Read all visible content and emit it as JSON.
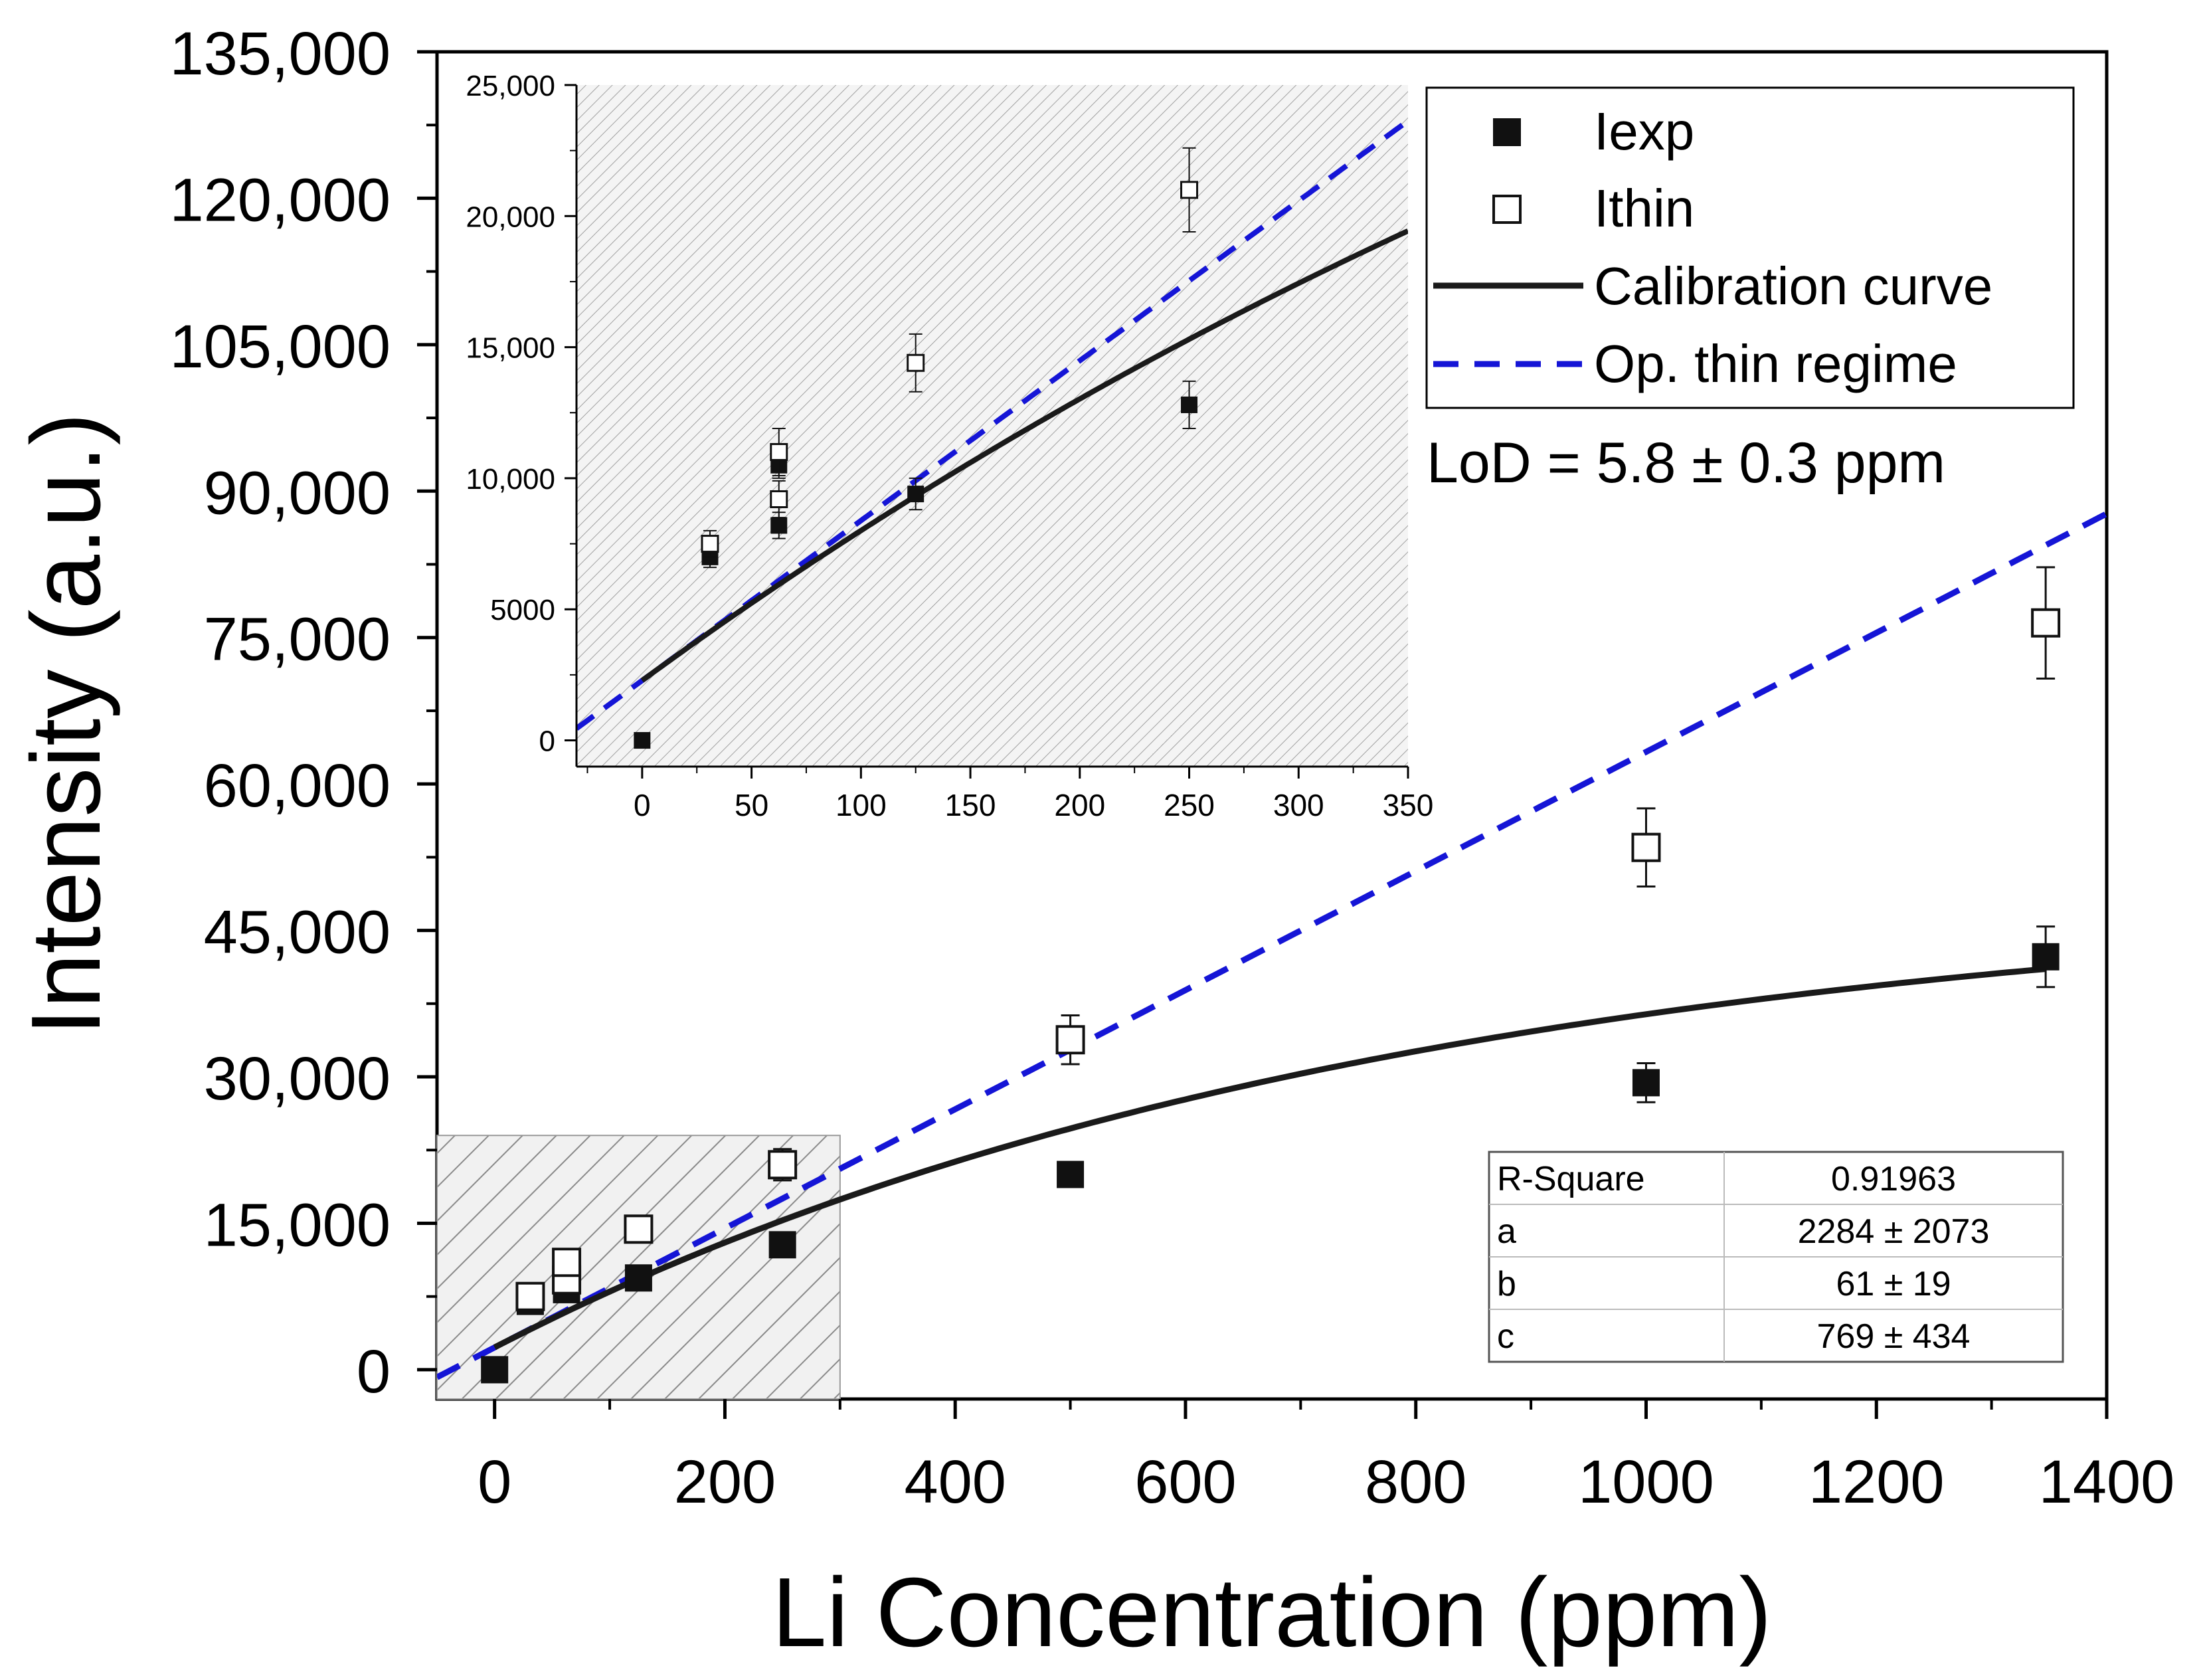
{
  "chart_data": {
    "type": "scatter",
    "title": "",
    "xlabel": "Li Concentration (ppm)",
    "ylabel": "Intensity (a.u.)",
    "xlim": [
      -50,
      1400
    ],
    "ylim": [
      -3000,
      135000
    ],
    "x_ticks": [
      0,
      200,
      400,
      600,
      800,
      1000,
      1200,
      1400
    ],
    "x_tick_labels": [
      "0",
      "200",
      "400",
      "600",
      "800",
      "1000",
      "1200",
      "1400"
    ],
    "y_ticks": [
      0,
      15000,
      30000,
      45000,
      60000,
      75000,
      90000,
      105000,
      120000,
      135000
    ],
    "y_tick_labels": [
      "0",
      "15,000",
      "30,000",
      "45,000",
      "60,000",
      "75,000",
      "90,000",
      "105,000",
      "120,000",
      "135,000"
    ],
    "series": [
      {
        "name": "Iexp",
        "marker": "filled-square",
        "points": [
          {
            "x": 0,
            "y": 0,
            "err": 0
          },
          {
            "x": 31,
            "y": 7000,
            "err": 400
          },
          {
            "x": 62.5,
            "y": 8200,
            "err": 500
          },
          {
            "x": 62.5,
            "y": 10500,
            "err": 500
          },
          {
            "x": 125,
            "y": 9400,
            "err": 600
          },
          {
            "x": 250,
            "y": 12800,
            "err": 900
          },
          {
            "x": 500,
            "y": 20000,
            "err": 700
          },
          {
            "x": 1000,
            "y": 29400,
            "err": 2000
          },
          {
            "x": 1347,
            "y": 42300,
            "err": 3100
          }
        ]
      },
      {
        "name": "Ithin",
        "marker": "open-square",
        "points": [
          {
            "x": 31,
            "y": 7500,
            "err": 500
          },
          {
            "x": 62.5,
            "y": 9200,
            "err": 700
          },
          {
            "x": 62.5,
            "y": 11000,
            "err": 900
          },
          {
            "x": 125,
            "y": 14400,
            "err": 1100
          },
          {
            "x": 250,
            "y": 21000,
            "err": 1600
          },
          {
            "x": 500,
            "y": 33800,
            "err": 2500
          },
          {
            "x": 1000,
            "y": 53500,
            "err": 4000
          },
          {
            "x": 1347,
            "y": 76500,
            "err": 5700
          }
        ]
      }
    ],
    "fits": [
      {
        "name": "Calibration curve",
        "style": "solid",
        "color": "#1a1a1a",
        "model": "y = a + b*c*(1 - exp(-x/c))",
        "params": {
          "a": 2284,
          "b": 61,
          "c": 769
        }
      },
      {
        "name": "Op. thin regime",
        "style": "dashed",
        "color": "#1515d6",
        "model": "y = a + b*x",
        "params": {
          "a": 2284,
          "b": 61
        }
      }
    ],
    "shaded_region": {
      "xlim": [
        -50,
        300
      ],
      "ylim": [
        -3000,
        24000
      ]
    },
    "inset": {
      "xlim": [
        -30,
        350
      ],
      "ylim": [
        -1000,
        25000
      ],
      "x_ticks": [
        0,
        50,
        100,
        150,
        200,
        250,
        300,
        350
      ],
      "x_tick_labels": [
        "0",
        "50",
        "100",
        "150",
        "200",
        "250",
        "300",
        "350"
      ],
      "y_ticks": [
        0,
        5000,
        10000,
        15000,
        20000,
        25000
      ],
      "y_tick_labels": [
        "0",
        "5000",
        "10,000",
        "15,000",
        "20,000",
        "25,000"
      ]
    },
    "legend": {
      "position": "top-right",
      "entries": [
        {
          "label": "Iexp",
          "kind": "filled-square"
        },
        {
          "label": "Ithin",
          "kind": "open-square"
        },
        {
          "label": "Calibration curve",
          "kind": "solid-line"
        },
        {
          "label": "Op. thin regime",
          "kind": "dashed-line"
        }
      ]
    },
    "annotation": "LoD = 5.8 ± 0.3 ppm",
    "fit_table": {
      "position": "bottom-right",
      "rows": [
        [
          "R-Square",
          "0.91963"
        ],
        [
          "a",
          "2284 ± 2073"
        ],
        [
          "b",
          "61 ± 19"
        ],
        [
          "c",
          "769 ± 434"
        ]
      ]
    },
    "colors": {
      "axis": "#000000",
      "iexp": "#111111",
      "curve": "#1a1a1a",
      "thin": "#1515d6",
      "hatch": "#8a8a8a"
    }
  }
}
